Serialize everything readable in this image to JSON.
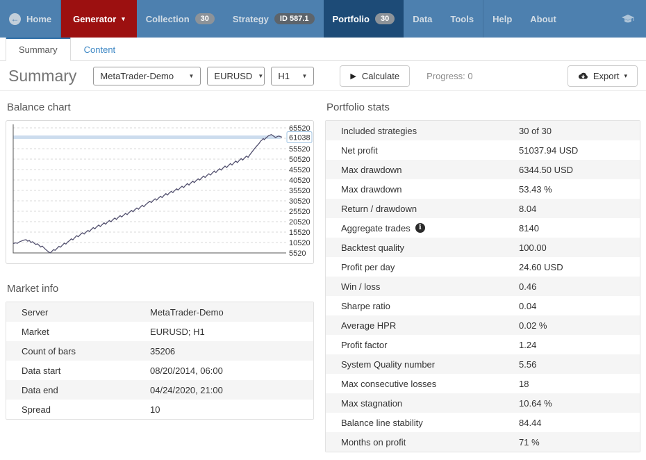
{
  "navbar": {
    "items": [
      {
        "id": "home",
        "label": "Home",
        "icon": "back-circle-icon",
        "style": "normal",
        "divider_after": true
      },
      {
        "id": "generator",
        "label": "Generator",
        "style": "red",
        "caret": true
      },
      {
        "id": "collection",
        "label": "Collection",
        "badge": "30",
        "badge_style": "gray",
        "style": "normal"
      },
      {
        "id": "strategy",
        "label": "Strategy",
        "badge": "ID 587.1",
        "badge_style": "dark",
        "style": "normal"
      },
      {
        "id": "portfolio",
        "label": "Portfolio",
        "badge": "30",
        "badge_style": "gray",
        "style": "active"
      },
      {
        "id": "data",
        "label": "Data",
        "style": "normal"
      },
      {
        "id": "tools",
        "label": "Tools",
        "style": "normal",
        "divider_after": true
      },
      {
        "id": "help",
        "label": "Help",
        "style": "normal"
      },
      {
        "id": "about",
        "label": "About",
        "style": "normal"
      }
    ],
    "right_icon": "graduation-cap-icon",
    "colors": {
      "bg": "#4d80af",
      "active_bg": "#1d4b77",
      "red_bg": "#9c1010"
    }
  },
  "tabs": {
    "items": [
      {
        "label": "Summary",
        "active": true
      },
      {
        "label": "Content",
        "active": false
      }
    ]
  },
  "toolbar": {
    "title": "Summary",
    "selects": [
      {
        "name": "server-select",
        "value": "MetaTrader-Demo"
      },
      {
        "name": "symbol-select",
        "value": "EURUSD"
      },
      {
        "name": "period-select",
        "value": "H1"
      }
    ],
    "calculate_label": "Calculate",
    "progress_label": "Progress: 0",
    "export_label": "Export"
  },
  "balance_chart_heading": "Balance chart",
  "market_info": {
    "heading": "Market info",
    "rows": [
      {
        "label": "Server",
        "value": "MetaTrader-Demo"
      },
      {
        "label": "Market",
        "value": "EURUSD; H1"
      },
      {
        "label": "Count of bars",
        "value": "35206"
      },
      {
        "label": "Data start",
        "value": "08/20/2014, 06:00"
      },
      {
        "label": "Data end",
        "value": "04/24/2020, 21:00"
      },
      {
        "label": "Spread",
        "value": "10"
      }
    ]
  },
  "portfolio_stats": {
    "heading": "Portfolio stats",
    "rows": [
      {
        "label": "Included strategies",
        "value": "30 of 30"
      },
      {
        "label": "Net profit",
        "value": "51037.94 USD"
      },
      {
        "label": "Max drawdown",
        "value": "6344.50 USD"
      },
      {
        "label": "Max drawdown",
        "value": "53.43 %"
      },
      {
        "label": "Return / drawdown",
        "value": "8.04"
      },
      {
        "label": "Aggregate trades",
        "value": "8140",
        "info": true
      },
      {
        "label": "Backtest quality",
        "value": "100.00"
      },
      {
        "label": "Profit per day",
        "value": "24.60 USD"
      },
      {
        "label": "Win / loss",
        "value": "0.46"
      },
      {
        "label": "Sharpe ratio",
        "value": "0.04"
      },
      {
        "label": "Average HPR",
        "value": "0.02 %"
      },
      {
        "label": "Profit factor",
        "value": "1.24"
      },
      {
        "label": "System Quality number",
        "value": "5.56"
      },
      {
        "label": "Max consecutive losses",
        "value": "18"
      },
      {
        "label": "Max stagnation",
        "value": "10.64 %"
      },
      {
        "label": "Balance line stability",
        "value": "84.44"
      },
      {
        "label": "Months on profit",
        "value": "71 %"
      }
    ]
  },
  "chart_data": {
    "type": "line",
    "title": "Balance chart",
    "ylim": [
      5520,
      65520
    ],
    "yticks": [
      65520,
      55520,
      50520,
      45520,
      40520,
      35520,
      30520,
      25520,
      20520,
      15520,
      10520,
      5520
    ],
    "grid_step": 5000,
    "grid": true,
    "legend_position": "none",
    "current_balance": 61038,
    "current_balance_band_color": "#ccdcee",
    "line_color": "#53516f",
    "series": [
      {
        "name": "Balance",
        "points": [
          [
            0,
            10000
          ],
          [
            0.008,
            10350
          ],
          [
            0.016,
            10150
          ],
          [
            0.024,
            10900
          ],
          [
            0.032,
            11300
          ],
          [
            0.04,
            11700
          ],
          [
            0.048,
            11870
          ],
          [
            0.054,
            11150
          ],
          [
            0.06,
            11500
          ],
          [
            0.066,
            10600
          ],
          [
            0.072,
            10900
          ],
          [
            0.078,
            10200
          ],
          [
            0.084,
            9600
          ],
          [
            0.09,
            9900
          ],
          [
            0.096,
            9200
          ],
          [
            0.102,
            8400
          ],
          [
            0.108,
            8800
          ],
          [
            0.114,
            8100
          ],
          [
            0.12,
            7300
          ],
          [
            0.126,
            6600
          ],
          [
            0.132,
            5950
          ],
          [
            0.138,
            5530
          ],
          [
            0.144,
            6300
          ],
          [
            0.15,
            7100
          ],
          [
            0.156,
            6800
          ],
          [
            0.162,
            7600
          ],
          [
            0.17,
            8700
          ],
          [
            0.176,
            8300
          ],
          [
            0.182,
            9100
          ],
          [
            0.19,
            10200
          ],
          [
            0.196,
            9800
          ],
          [
            0.202,
            10700
          ],
          [
            0.21,
            11500
          ],
          [
            0.216,
            12300
          ],
          [
            0.222,
            11800
          ],
          [
            0.228,
            12700
          ],
          [
            0.236,
            13800
          ],
          [
            0.242,
            13300
          ],
          [
            0.25,
            14400
          ],
          [
            0.258,
            15200
          ],
          [
            0.264,
            14600
          ],
          [
            0.27,
            15400
          ],
          [
            0.278,
            16300
          ],
          [
            0.284,
            15800
          ],
          [
            0.29,
            16700
          ],
          [
            0.298,
            17700
          ],
          [
            0.304,
            17100
          ],
          [
            0.31,
            18000
          ],
          [
            0.318,
            18900
          ],
          [
            0.324,
            18200
          ],
          [
            0.33,
            19000
          ],
          [
            0.338,
            20000
          ],
          [
            0.344,
            19300
          ],
          [
            0.35,
            20200
          ],
          [
            0.358,
            21100
          ],
          [
            0.364,
            20500
          ],
          [
            0.37,
            21400
          ],
          [
            0.378,
            22300
          ],
          [
            0.384,
            21600
          ],
          [
            0.39,
            22500
          ],
          [
            0.398,
            23400
          ],
          [
            0.404,
            22800
          ],
          [
            0.41,
            23600
          ],
          [
            0.418,
            24500
          ],
          [
            0.424,
            23900
          ],
          [
            0.43,
            24800
          ],
          [
            0.44,
            25900
          ],
          [
            0.446,
            25300
          ],
          [
            0.452,
            26200
          ],
          [
            0.46,
            27100
          ],
          [
            0.466,
            26500
          ],
          [
            0.472,
            27400
          ],
          [
            0.48,
            28400
          ],
          [
            0.486,
            27700
          ],
          [
            0.492,
            28600
          ],
          [
            0.5,
            29500
          ],
          [
            0.508,
            30300
          ],
          [
            0.514,
            29700
          ],
          [
            0.52,
            30600
          ],
          [
            0.528,
            31500
          ],
          [
            0.534,
            30900
          ],
          [
            0.54,
            31800
          ],
          [
            0.548,
            32700
          ],
          [
            0.554,
            32100
          ],
          [
            0.56,
            33000
          ],
          [
            0.568,
            34000
          ],
          [
            0.574,
            33300
          ],
          [
            0.58,
            34200
          ],
          [
            0.588,
            35100
          ],
          [
            0.594,
            34500
          ],
          [
            0.6,
            35400
          ],
          [
            0.608,
            36300
          ],
          [
            0.614,
            35700
          ],
          [
            0.62,
            36600
          ],
          [
            0.628,
            37500
          ],
          [
            0.634,
            36900
          ],
          [
            0.64,
            37800
          ],
          [
            0.648,
            38800
          ],
          [
            0.654,
            38100
          ],
          [
            0.66,
            39000
          ],
          [
            0.668,
            39900
          ],
          [
            0.674,
            39300
          ],
          [
            0.68,
            40200
          ],
          [
            0.688,
            41100
          ],
          [
            0.694,
            40500
          ],
          [
            0.7,
            41400
          ],
          [
            0.708,
            42400
          ],
          [
            0.714,
            41700
          ],
          [
            0.72,
            42600
          ],
          [
            0.728,
            43500
          ],
          [
            0.734,
            42900
          ],
          [
            0.74,
            43800
          ],
          [
            0.748,
            44800
          ],
          [
            0.754,
            44100
          ],
          [
            0.76,
            45000
          ],
          [
            0.768,
            45900
          ],
          [
            0.774,
            45300
          ],
          [
            0.78,
            46200
          ],
          [
            0.788,
            47200
          ],
          [
            0.794,
            46500
          ],
          [
            0.8,
            47400
          ],
          [
            0.808,
            48400
          ],
          [
            0.814,
            47700
          ],
          [
            0.82,
            48600
          ],
          [
            0.828,
            49600
          ],
          [
            0.834,
            48900
          ],
          [
            0.84,
            49800
          ],
          [
            0.848,
            50800
          ],
          [
            0.854,
            50100
          ],
          [
            0.86,
            51000
          ],
          [
            0.868,
            52000
          ],
          [
            0.874,
            51400
          ],
          [
            0.88,
            52600
          ],
          [
            0.886,
            53600
          ],
          [
            0.892,
            54600
          ],
          [
            0.898,
            55600
          ],
          [
            0.904,
            56500
          ],
          [
            0.91,
            57400
          ],
          [
            0.916,
            58300
          ],
          [
            0.92,
            59100
          ],
          [
            0.926,
            59800
          ],
          [
            0.93,
            60400
          ],
          [
            0.934,
            59900
          ],
          [
            0.94,
            60700
          ],
          [
            0.946,
            61300
          ],
          [
            0.95,
            61800
          ],
          [
            0.956,
            62100
          ],
          [
            0.96,
            62300
          ],
          [
            0.966,
            61900
          ],
          [
            0.97,
            61400
          ],
          [
            0.976,
            60900
          ],
          [
            0.982,
            61300
          ],
          [
            0.988,
            61600
          ],
          [
            0.994,
            61300
          ],
          [
            1,
            61038
          ]
        ]
      }
    ]
  }
}
